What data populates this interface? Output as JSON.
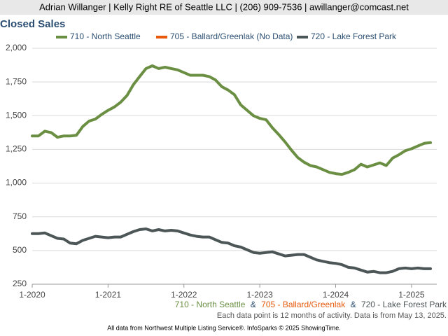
{
  "header": "Adrian Willanger | Kelly Right RE of Seattle LLC | (206) 909-7536 | awillanger@comcast.net",
  "chart_data": {
    "type": "line",
    "title": "Closed Sales",
    "x": [
      "1-2020",
      "2-2020",
      "3-2020",
      "4-2020",
      "5-2020",
      "6-2020",
      "7-2020",
      "8-2020",
      "9-2020",
      "10-2020",
      "11-2020",
      "12-2020",
      "1-2021",
      "2-2021",
      "3-2021",
      "4-2021",
      "5-2021",
      "6-2021",
      "7-2021",
      "8-2021",
      "9-2021",
      "10-2021",
      "11-2021",
      "12-2021",
      "1-2022",
      "2-2022",
      "3-2022",
      "4-2022",
      "5-2022",
      "6-2022",
      "7-2022",
      "8-2022",
      "9-2022",
      "10-2022",
      "11-2022",
      "12-2022",
      "1-2023",
      "2-2023",
      "3-2023",
      "4-2023",
      "5-2023",
      "6-2023",
      "7-2023",
      "8-2023",
      "9-2023",
      "10-2023",
      "11-2023",
      "12-2023",
      "1-2024",
      "2-2024",
      "3-2024",
      "4-2024",
      "5-2024",
      "6-2024",
      "7-2024",
      "8-2024",
      "9-2024",
      "10-2024",
      "11-2024",
      "12-2024",
      "1-2025",
      "2-2025",
      "3-2025",
      "4-2025"
    ],
    "series": [
      {
        "name": "710 - North Seattle",
        "color": "#6a8f43",
        "values": [
          1350,
          1350,
          1385,
          1375,
          1340,
          1350,
          1350,
          1355,
          1420,
          1460,
          1475,
          1510,
          1540,
          1565,
          1600,
          1650,
          1730,
          1790,
          1850,
          1870,
          1850,
          1860,
          1850,
          1840,
          1820,
          1800,
          1800,
          1800,
          1790,
          1765,
          1715,
          1690,
          1655,
          1580,
          1540,
          1500,
          1480,
          1470,
          1410,
          1360,
          1305,
          1245,
          1190,
          1155,
          1130,
          1120,
          1100,
          1080,
          1070,
          1065,
          1080,
          1100,
          1140,
          1120,
          1135,
          1150,
          1130,
          1185,
          1210,
          1240,
          1255,
          1275,
          1295,
          1300
        ]
      },
      {
        "name": "705 - Ballard/Greenlak (No Data)",
        "color": "#e8590c",
        "values": [
          null,
          null,
          null,
          null,
          null,
          null,
          null,
          null,
          null,
          null,
          null,
          null,
          null,
          null,
          null,
          null,
          null,
          null,
          null,
          null,
          null,
          null,
          null,
          null,
          null,
          null,
          null,
          null,
          null,
          null,
          null,
          null,
          null,
          null,
          null,
          null,
          null,
          null,
          null,
          null,
          null,
          null,
          null,
          null,
          null,
          null,
          null,
          null,
          null,
          null,
          null,
          null,
          null,
          null,
          null,
          null,
          null,
          null,
          null,
          null,
          null,
          null,
          null,
          null
        ]
      },
      {
        "name": "720 - Lake Forest Park",
        "color": "#4d5656",
        "values": [
          625,
          625,
          630,
          610,
          590,
          585,
          555,
          550,
          575,
          590,
          605,
          600,
          595,
          600,
          600,
          620,
          640,
          655,
          660,
          645,
          655,
          645,
          650,
          645,
          630,
          615,
          605,
          600,
          600,
          580,
          560,
          555,
          535,
          525,
          505,
          485,
          480,
          485,
          490,
          475,
          460,
          465,
          470,
          470,
          450,
          430,
          420,
          410,
          405,
          395,
          375,
          370,
          355,
          340,
          345,
          335,
          335,
          345,
          365,
          370,
          365,
          370,
          365,
          365
        ]
      }
    ],
    "xlim": [
      "1-2020",
      "5-2025"
    ],
    "xticks": [
      "1-2020",
      "1-2021",
      "1-2022",
      "1-2023",
      "1-2024",
      "1-2025"
    ],
    "ylim": [
      250,
      2000
    ],
    "yticks": [
      250,
      500,
      750,
      {
        "value": 1000,
        "label": "1,000"
      },
      {
        "value": 1250,
        "label": "1,250"
      },
      {
        "value": 1500,
        "label": "1,500"
      },
      {
        "value": 1750,
        "label": "1,750"
      },
      {
        "value": 2000,
        "label": "2,000"
      }
    ],
    "grid": true,
    "legend": "top"
  },
  "footer_legend": [
    "710 - North Seattle",
    "705 - Ballard/Greenlak",
    "720 - Lake Forest Park"
  ],
  "footer_separator": "&",
  "note": "Each data point is 12 months of activity. Data is from May 13, 2025.",
  "source": "All data from Northwest Multiple Listing Service®. InfoSparks © 2025 ShowingTime."
}
